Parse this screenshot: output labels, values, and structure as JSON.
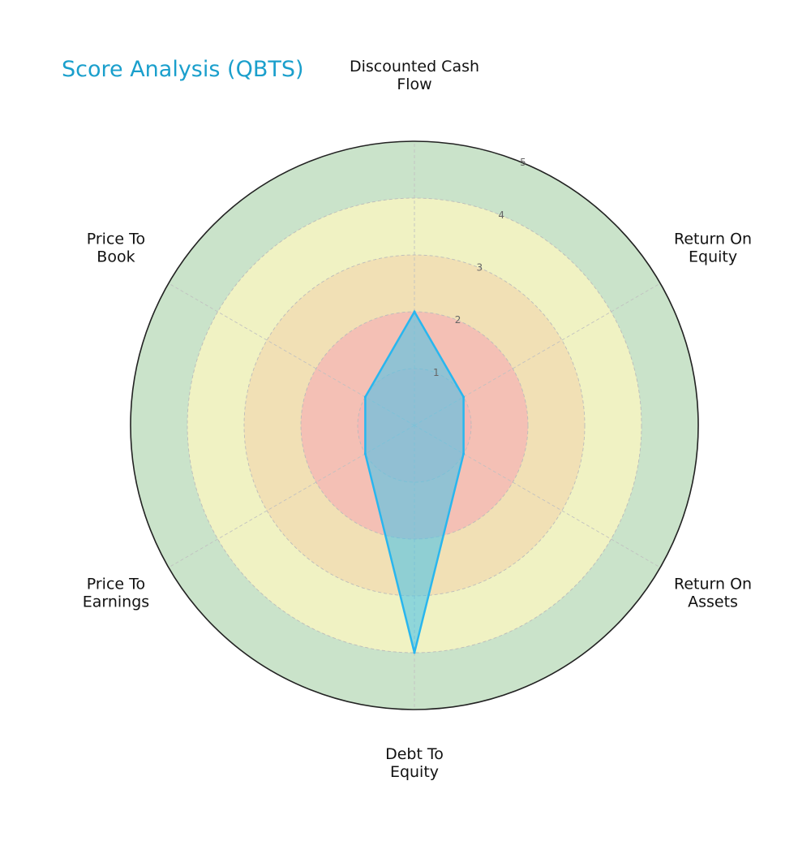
{
  "title": "Score Analysis (QBTS)",
  "colors": {
    "title": "#1a9fcc",
    "band_1": "#f4b6b6",
    "band_2": "#f2d9b0",
    "band_3": "#fcf7c0",
    "band_4": "#b8d9b8",
    "series_fill": "#4ec3e8",
    "series_line": "#29b6ee",
    "outline": "#222222"
  },
  "chart_data": {
    "type": "radar",
    "categories": [
      [
        "Discounted Cash",
        "Flow"
      ],
      [
        "Return On",
        "Equity"
      ],
      [
        "Return On",
        "Assets"
      ],
      [
        "Debt To",
        "Equity"
      ],
      [
        "Price To",
        "Earnings"
      ],
      [
        "Price To",
        "Book"
      ]
    ],
    "values": [
      2,
      1,
      1,
      4,
      1,
      1
    ],
    "rlim": [
      0,
      5
    ],
    "ticks": [
      "1",
      "2",
      "3",
      "4",
      "5"
    ],
    "grid": true
  }
}
